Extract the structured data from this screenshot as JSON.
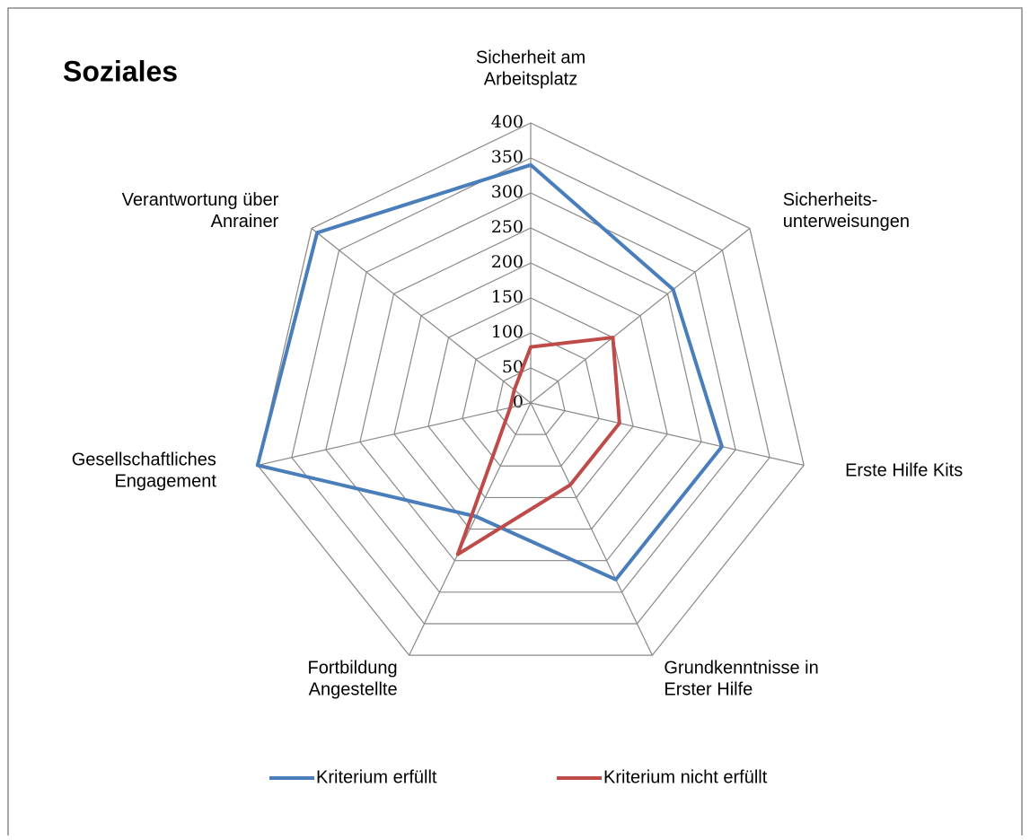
{
  "chart_data": {
    "type": "radar",
    "title": "Soziales",
    "categories": [
      [
        "Sicherheit am",
        "Arbeitsplatz"
      ],
      [
        "Sicherheits-",
        "unterweisungen"
      ],
      [
        "Erste Hilfe Kits"
      ],
      [
        "Grundkenntnisse in",
        "Erster Hilfe"
      ],
      [
        "Fortbildung",
        "Angestellte"
      ],
      [
        "Gesellschaftliches",
        "Engagement"
      ],
      [
        "Verantwortung über",
        "Anrainer"
      ]
    ],
    "series": [
      {
        "name": "Kriterium erfüllt",
        "color": "#4a7ebb",
        "values": [
          340,
          260,
          280,
          280,
          180,
          400,
          390
        ]
      },
      {
        "name": "Kriterium nicht erfüllt",
        "color": "#be4b48",
        "values": [
          80,
          150,
          130,
          130,
          240,
          30,
          30
        ]
      }
    ],
    "ylim": [
      0,
      400
    ],
    "yticks": [
      0,
      50,
      100,
      150,
      200,
      250,
      300,
      350,
      400
    ],
    "grid": true,
    "legend": "bottom"
  }
}
